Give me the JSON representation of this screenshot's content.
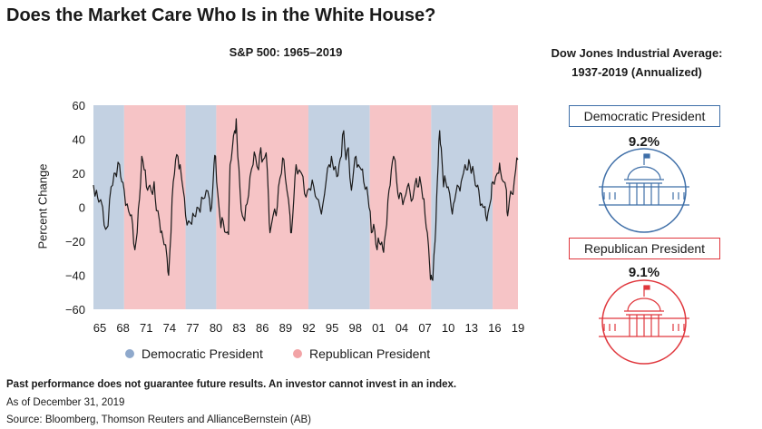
{
  "title": "Does the Market Care Who Is in the White House?",
  "chart_data": {
    "type": "line",
    "title": "S&P 500: 1965–2019",
    "xlabel": "",
    "ylabel": "Percent Change",
    "ylim": [
      -60,
      60
    ],
    "yticks": [
      "60",
      "40",
      "20",
      "0",
      "−20",
      "−40",
      "−60"
    ],
    "xtick_labels": [
      "65",
      "68",
      "71",
      "74",
      "77",
      "80",
      "83",
      "86",
      "89",
      "92",
      "95",
      "98",
      "01",
      "04",
      "07",
      "10",
      "13",
      "16",
      "19"
    ],
    "x_range": [
      1965,
      2020.3
    ],
    "grid": false,
    "legend_position": "bottom",
    "legend": [
      {
        "label": "Democratic President",
        "color": "#c3d1e2"
      },
      {
        "label": "Republican President",
        "color": "#f6c4c6"
      }
    ],
    "terms": [
      {
        "party": "D",
        "start": 1965,
        "end": 1969
      },
      {
        "party": "R",
        "start": 1969,
        "end": 1977
      },
      {
        "party": "D",
        "start": 1977,
        "end": 1981
      },
      {
        "party": "R",
        "start": 1981,
        "end": 1993
      },
      {
        "party": "D",
        "start": 1993,
        "end": 2001
      },
      {
        "party": "R",
        "start": 2001,
        "end": 2009
      },
      {
        "party": "D",
        "start": 2009,
        "end": 2017
      },
      {
        "party": "R",
        "start": 2017,
        "end": 2020.3
      }
    ],
    "series": [
      {
        "values": [
          [
            1965.0,
            13
          ],
          [
            1965.4,
            10
          ],
          [
            1965.7,
            3
          ],
          [
            1966.2,
            0
          ],
          [
            1966.6,
            -13
          ],
          [
            1966.9,
            -11
          ],
          [
            1967.3,
            12
          ],
          [
            1967.7,
            20
          ],
          [
            1968.0,
            18
          ],
          [
            1968.4,
            25
          ],
          [
            1968.7,
            15
          ],
          [
            1969.0,
            10
          ],
          [
            1969.4,
            2
          ],
          [
            1969.8,
            -5
          ],
          [
            1970.1,
            -10
          ],
          [
            1970.4,
            -25
          ],
          [
            1970.7,
            -15
          ],
          [
            1971.0,
            5
          ],
          [
            1971.3,
            30
          ],
          [
            1971.6,
            22
          ],
          [
            1971.9,
            12
          ],
          [
            1972.2,
            12
          ],
          [
            1972.5,
            10
          ],
          [
            1972.9,
            15
          ],
          [
            1973.2,
            -2
          ],
          [
            1973.6,
            -8
          ],
          [
            1973.9,
            -14
          ],
          [
            1974.2,
            -22
          ],
          [
            1974.6,
            -30
          ],
          [
            1974.8,
            -40
          ],
          [
            1975.1,
            -15
          ],
          [
            1975.4,
            15
          ],
          [
            1975.7,
            28
          ],
          [
            1976.0,
            30
          ],
          [
            1976.3,
            25
          ],
          [
            1976.7,
            10
          ],
          [
            1977.0,
            -5
          ],
          [
            1977.4,
            -8
          ],
          [
            1977.8,
            -10
          ],
          [
            1978.1,
            -5
          ],
          [
            1978.5,
            0
          ],
          [
            1978.9,
            -3
          ],
          [
            1979.3,
            5
          ],
          [
            1979.7,
            10
          ],
          [
            1980.1,
            5
          ],
          [
            1980.4,
            0
          ],
          [
            1980.7,
            25
          ],
          [
            1980.9,
            30
          ],
          [
            1981.2,
            8
          ],
          [
            1981.6,
            -12
          ],
          [
            1981.9,
            -8
          ],
          [
            1982.3,
            -15
          ],
          [
            1982.6,
            -16
          ],
          [
            1982.8,
            25
          ],
          [
            1983.1,
            35
          ],
          [
            1983.4,
            45
          ],
          [
            1983.6,
            52
          ],
          [
            1983.8,
            30
          ],
          [
            1984.1,
            10
          ],
          [
            1984.4,
            -5
          ],
          [
            1984.7,
            -8
          ],
          [
            1985.0,
            2
          ],
          [
            1985.4,
            18
          ],
          [
            1985.8,
            25
          ],
          [
            1986.1,
            30
          ],
          [
            1986.5,
            22
          ],
          [
            1986.8,
            35
          ],
          [
            1987.1,
            28
          ],
          [
            1987.5,
            32
          ],
          [
            1987.8,
            5
          ],
          [
            1988.0,
            -15
          ],
          [
            1988.4,
            -5
          ],
          [
            1988.8,
            -5
          ],
          [
            1989.1,
            12
          ],
          [
            1989.5,
            20
          ],
          [
            1989.8,
            28
          ],
          [
            1990.2,
            10
          ],
          [
            1990.6,
            -5
          ],
          [
            1990.8,
            -15
          ],
          [
            1991.1,
            5
          ],
          [
            1991.4,
            25
          ],
          [
            1991.8,
            22
          ],
          [
            1992.1,
            20
          ],
          [
            1992.5,
            8
          ],
          [
            1992.9,
            10
          ],
          [
            1993.3,
            10
          ],
          [
            1993.7,
            12
          ],
          [
            1994.1,
            5
          ],
          [
            1994.5,
            0
          ],
          [
            1994.9,
            2
          ],
          [
            1995.3,
            15
          ],
          [
            1995.7,
            25
          ],
          [
            1996.0,
            30
          ],
          [
            1996.3,
            22
          ],
          [
            1996.7,
            18
          ],
          [
            1997.0,
            25
          ],
          [
            1997.3,
            30
          ],
          [
            1997.6,
            45
          ],
          [
            1997.9,
            28
          ],
          [
            1998.2,
            35
          ],
          [
            1998.6,
            10
          ],
          [
            1998.9,
            22
          ],
          [
            1999.2,
            30
          ],
          [
            1999.5,
            25
          ],
          [
            1999.9,
            22
          ],
          [
            2000.2,
            15
          ],
          [
            2000.6,
            12
          ],
          [
            2000.9,
            0
          ],
          [
            2001.2,
            -15
          ],
          [
            2001.5,
            -10
          ],
          [
            2001.8,
            -22
          ],
          [
            2002.1,
            -18
          ],
          [
            2002.4,
            -22
          ],
          [
            2002.7,
            -25
          ],
          [
            2002.9,
            -20
          ],
          [
            2003.2,
            -10
          ],
          [
            2003.5,
            10
          ],
          [
            2003.8,
            22
          ],
          [
            2004.1,
            30
          ],
          [
            2004.5,
            15
          ],
          [
            2004.8,
            5
          ],
          [
            2005.1,
            8
          ],
          [
            2005.5,
            5
          ],
          [
            2005.9,
            12
          ],
          [
            2006.2,
            10
          ],
          [
            2006.6,
            5
          ],
          [
            2006.9,
            14
          ],
          [
            2007.2,
            12
          ],
          [
            2007.5,
            18
          ],
          [
            2007.9,
            5
          ],
          [
            2008.2,
            -5
          ],
          [
            2008.5,
            -15
          ],
          [
            2008.8,
            -35
          ],
          [
            2009.0,
            -40
          ],
          [
            2009.2,
            -43
          ],
          [
            2009.5,
            -20
          ],
          [
            2009.7,
            5
          ],
          [
            2009.9,
            25
          ],
          [
            2010.1,
            45
          ],
          [
            2010.3,
            35
          ],
          [
            2010.6,
            12
          ],
          [
            2010.9,
            15
          ],
          [
            2011.2,
            12
          ],
          [
            2011.6,
            0
          ],
          [
            2011.9,
            2
          ],
          [
            2012.2,
            8
          ],
          [
            2012.6,
            12
          ],
          [
            2012.9,
            15
          ],
          [
            2013.2,
            20
          ],
          [
            2013.6,
            22
          ],
          [
            2013.9,
            28
          ],
          [
            2014.2,
            20
          ],
          [
            2014.6,
            18
          ],
          [
            2014.9,
            12
          ],
          [
            2015.2,
            10
          ],
          [
            2015.6,
            2
          ],
          [
            2015.9,
            0
          ],
          [
            2016.1,
            -5
          ],
          [
            2016.4,
            -3
          ],
          [
            2016.8,
            5
          ],
          [
            2017.0,
            15
          ],
          [
            2017.4,
            18
          ],
          [
            2017.8,
            20
          ],
          [
            2018.0,
            22
          ],
          [
            2018.4,
            15
          ],
          [
            2018.8,
            10
          ],
          [
            2018.95,
            -5
          ],
          [
            2019.2,
            5
          ],
          [
            2019.5,
            8
          ],
          [
            2019.8,
            15
          ],
          [
            2020.0,
            22
          ],
          [
            2020.3,
            28
          ]
        ]
      }
    ]
  },
  "legend_labels": {
    "democratic": "Democratic President",
    "republican": "Republican President"
  },
  "dow": {
    "title_line1": "Dow Jones Industrial Average:",
    "title_line2": "1937-2019 (Annualized)",
    "democratic": {
      "label": "Democratic President",
      "value": "9.2%",
      "color": "#3f6fa8",
      "icon": "white-house-icon"
    },
    "republican": {
      "label": "Republican President",
      "value": "9.1%",
      "color": "#e0373d",
      "icon": "white-house-icon"
    }
  },
  "footnotes": {
    "disclaimer": "Past performance does not guarantee future results. An investor cannot invest in an index.",
    "date": "As of December 31, 2019",
    "source": "Source: Bloomberg, Thomson Reuters and AllianceBernstein (AB)"
  }
}
